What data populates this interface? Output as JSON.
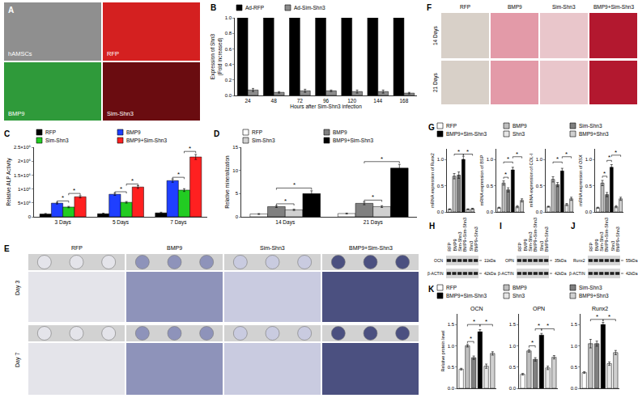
{
  "chart_data": [
    {
      "panel_label": "B",
      "type": "bar",
      "categories": [
        "24",
        "48",
        "72",
        "96",
        "120",
        "144",
        "168"
      ],
      "xlabel": "Hours after Sim-Shn3 infection",
      "ylabel": [
        "Expression of Shn3",
        "(Fold increased)"
      ],
      "series": [
        {
          "name": "Ad-RFP",
          "color": "#000000",
          "values": [
            1,
            1,
            1,
            1,
            1,
            1,
            1
          ]
        },
        {
          "name": "Ad-Sim-Shn3",
          "color": "#8c8c8c",
          "values": [
            0.07,
            0.04,
            0.06,
            0.06,
            0.05,
            0.05,
            0.03
          ],
          "errors": [
            0.02,
            0.01,
            0.02,
            0.01,
            0.02,
            0.02,
            0.01
          ]
        }
      ],
      "ylim": [
        0,
        1
      ],
      "yticks": [
        {
          "value": 0,
          "label": "0.0"
        },
        0.2,
        0.4,
        0.6,
        0.8,
        {
          "value": 1,
          "label": "1.0"
        }
      ],
      "legend": "top"
    },
    {
      "panel_label": "C",
      "type": "bar",
      "categories": [
        "3 Days",
        "5 Days",
        "7 Days"
      ],
      "ylabel": [
        "Relative ALP Activity"
      ],
      "series": [
        {
          "name": "RFP",
          "color": "#000000",
          "values": [
            100000,
            110000,
            140000
          ],
          "errors": [
            20000,
            20000,
            25000
          ]
        },
        {
          "name": "BMP9",
          "color": "#1f3fff",
          "values": [
            490000,
            810000,
            1300000
          ],
          "errors": [
            30000,
            40000,
            60000
          ]
        },
        {
          "name": "Sim-Shn3",
          "color": "#22cc22",
          "values": [
            350000,
            520000,
            960000
          ],
          "errors": [
            25000,
            30000,
            50000
          ]
        },
        {
          "name": "BMP9+Sim-Shn3",
          "color": "#ff2020",
          "values": [
            720000,
            1070000,
            2150000
          ],
          "errors": [
            40000,
            50000,
            90000
          ]
        }
      ],
      "ylim": [
        0,
        2500000
      ],
      "yticks": [
        0,
        {
          "value": 500000,
          "label": "5×10⁵"
        },
        {
          "value": 1000000,
          "label": "1×10⁶"
        },
        {
          "value": 1500000,
          "label": "1.5×10⁶"
        },
        {
          "value": 2000000,
          "label": "2×10⁶"
        },
        {
          "value": 2500000,
          "label": "2.5×10⁶"
        }
      ],
      "significance": [
        {
          "category": "3 Days",
          "from": "BMP9",
          "to": "Sim-Shn3",
          "y": 570000,
          "label": "*"
        },
        {
          "category": "3 Days",
          "from": "Sim-Shn3",
          "to": "BMP9+Sim-Shn3",
          "y": 840000,
          "label": "*"
        },
        {
          "category": "5 Days",
          "from": "BMP9",
          "to": "Sim-Shn3",
          "y": 900000,
          "label": "*"
        },
        {
          "category": "5 Days",
          "from": "Sim-Shn3",
          "to": "BMP9+Sim-Shn3",
          "y": 1180000,
          "label": "*"
        },
        {
          "category": "7 Days",
          "from": "BMP9",
          "to": "Sim-Shn3",
          "y": 1420000,
          "label": "*"
        },
        {
          "category": "7 Days",
          "from": "Sim-Shn3",
          "to": "BMP9+Sim-Shn3",
          "y": 2350000,
          "label": "*"
        }
      ],
      "legend": "top"
    },
    {
      "panel_label": "D",
      "type": "bar",
      "categories": [
        "14 Days",
        "21 Days"
      ],
      "ylabel": [
        "Relative mineralization"
      ],
      "series": [
        {
          "name": "RFP",
          "color": "#ffffff",
          "values": [
            0.6,
            0.7
          ],
          "errors": [
            0.1,
            0.1
          ]
        },
        {
          "name": "BMP9",
          "color": "#808080",
          "values": [
            2.2,
            2.9
          ],
          "errors": [
            0.2,
            0.3
          ]
        },
        {
          "name": "Sim-Shn3",
          "color": "#d0d0d0",
          "values": [
            1.5,
            2.2
          ],
          "errors": [
            0.15,
            0.2
          ]
        },
        {
          "name": "BMP9+Sim-Shn3",
          "color": "#000000",
          "values": [
            5.0,
            10.5
          ],
          "errors": [
            0.6,
            0.8
          ]
        }
      ],
      "ylim": [
        0,
        15
      ],
      "yticks": [
        0,
        5,
        10,
        15
      ],
      "significance": [
        {
          "category": "14 Days",
          "from": "BMP9",
          "to": "Sim-Shn3",
          "y": 2.8,
          "label": "*"
        },
        {
          "category": "14 Days",
          "from": "BMP9",
          "to": "BMP9+Sim-Shn3",
          "y": 6.2,
          "label": "*"
        },
        {
          "category": "21 Days",
          "from": "BMP9",
          "to": "Sim-Shn3",
          "y": 3.6,
          "label": "*"
        },
        {
          "category": "21 Days",
          "from": "BMP9",
          "to": "BMP9+Sim-Shn3",
          "y": 11.9,
          "label": "*"
        }
      ],
      "legend": "top"
    },
    {
      "panel_label": "G",
      "type": "bar",
      "categories": [
        "RFP",
        "BMP9",
        "Sim-Shn3",
        "BMP9+Sim-Shn3",
        "Shn3",
        "BMP9+Shn3"
      ],
      "ylabel": [
        "mRNA expression of Runx2"
      ],
      "values": [
        0.05,
        0.68,
        0.7,
        1.0,
        0.05,
        0.06
      ],
      "errors": [
        0.01,
        0.05,
        0.06,
        0.06,
        0.01,
        0.01
      ],
      "colors": [
        "#ffffff",
        "#bfbfbf",
        "#7f7f7f",
        "#000000",
        "#e6e6e6",
        "#d0d0d0"
      ],
      "ylim": [
        0,
        1.2
      ],
      "yticks": [
        {
          "value": 0,
          "label": "0.0"
        },
        0.5,
        {
          "value": 1,
          "label": "1.0"
        }
      ],
      "tick_labels": "y",
      "significance": [
        {
          "from": "BMP9",
          "to": "BMP9+Sim-Shn3",
          "y": 1.1,
          "label": "*"
        },
        {
          "from": "BMP9+Sim-Shn3",
          "to": "BMP9+Shn3",
          "y": 1.1,
          "label": "*"
        }
      ],
      "legend": "top"
    },
    {
      "type": "bar",
      "categories": [
        "RFP",
        "BMP9",
        "Sim-Shn3",
        "BMP9+Sim-Shn3",
        "Shn3",
        "BMP9+Shn3"
      ],
      "ylabel": [
        "mRNA expression of BSP"
      ],
      "values": [
        0.08,
        0.55,
        0.42,
        0.8,
        0.1,
        0.22
      ],
      "errors": [
        0.01,
        0.04,
        0.04,
        0.05,
        0.02,
        0.03
      ],
      "colors": [
        "#ffffff",
        "#bfbfbf",
        "#7f7f7f",
        "#000000",
        "#e6e6e6",
        "#d0d0d0"
      ],
      "ylim": [
        0,
        1.2
      ],
      "yticks": [
        {
          "value": 0,
          "label": "0.0"
        },
        0.5,
        {
          "value": 1,
          "label": "1.0"
        }
      ],
      "tick_labels": "y",
      "significance": [
        {
          "from": "BMP9",
          "to": "Sim-Shn3",
          "y": 0.66,
          "label": "*"
        },
        {
          "from": "BMP9",
          "to": "BMP9+Sim-Shn3",
          "y": 0.95,
          "label": "*"
        },
        {
          "from": "BMP9+Sim-Shn3",
          "to": "BMP9+Shn3",
          "y": 1.05,
          "label": "*"
        }
      ]
    },
    {
      "type": "bar",
      "categories": [
        "RFP",
        "BMP9",
        "Sim-Shn3",
        "BMP9+Sim-Shn3",
        "Shn3",
        "BMP9+Shn3"
      ],
      "ylabel": [
        "mRNA expression of COL-I"
      ],
      "values": [
        0.1,
        0.62,
        0.52,
        0.78,
        0.14,
        0.25
      ],
      "errors": [
        0.01,
        0.05,
        0.04,
        0.05,
        0.02,
        0.03
      ],
      "colors": [
        "#ffffff",
        "#bfbfbf",
        "#7f7f7f",
        "#000000",
        "#e6e6e6",
        "#d0d0d0"
      ],
      "ylim": [
        0,
        1.2
      ],
      "yticks": [
        {
          "value": 0,
          "label": "0.0"
        },
        0.5,
        {
          "value": 1,
          "label": "1.0"
        }
      ],
      "tick_labels": "y",
      "significance": [
        {
          "from": "BMP9",
          "to": "BMP9+Sim-Shn3",
          "y": 0.95,
          "label": "*"
        },
        {
          "from": "BMP9+Sim-Shn3",
          "to": "BMP9+Shn3",
          "y": 1.05,
          "label": "*"
        }
      ]
    },
    {
      "type": "bar",
      "categories": [
        "RFP",
        "BMP9",
        "Sim-Shn3",
        "BMP9+Sim-Shn3",
        "Shn3",
        "BMP9+Shn3"
      ],
      "ylabel": [
        "mRNA expression of OSX"
      ],
      "values": [
        0.08,
        0.55,
        0.33,
        0.85,
        0.1,
        0.25
      ],
      "errors": [
        0.01,
        0.05,
        0.04,
        0.05,
        0.02,
        0.03
      ],
      "colors": [
        "#ffffff",
        "#bfbfbf",
        "#7f7f7f",
        "#000000",
        "#e6e6e6",
        "#d0d0d0"
      ],
      "ylim": [
        0,
        1.2
      ],
      "yticks": [
        {
          "value": 0,
          "label": "0.0"
        },
        0.5,
        {
          "value": 1,
          "label": "1.0"
        }
      ],
      "tick_labels": "y",
      "significance": [
        {
          "from": "BMP9",
          "to": "Sim-Shn3",
          "y": 0.68,
          "label": "*"
        },
        {
          "from": "Sim-Shn3",
          "to": "BMP9+Sim-Shn3",
          "y": 0.98,
          "label": "*"
        },
        {
          "from": "BMP9+Sim-Shn3",
          "to": "BMP9+Shn3",
          "y": 1.08,
          "label": "*"
        }
      ]
    },
    {
      "panel_label": "K",
      "type": "bar",
      "title": "OCN",
      "categories": [
        "RFP",
        "BMP9",
        "Sim-Shn3",
        "BMP9+Sim-Shn3",
        "Shn3",
        "BMP9+Shn3"
      ],
      "ylabel": [
        "Relative protein level"
      ],
      "values": [
        0.45,
        1.0,
        0.72,
        1.33,
        0.52,
        0.82
      ],
      "errors": [
        0.02,
        0.03,
        0.04,
        0.05,
        0.05,
        0.04
      ],
      "colors": [
        "#ffffff",
        "#bfbfbf",
        "#7f7f7f",
        "#000000",
        "#e6e6e6",
        "#d0d0d0"
      ],
      "ylim": [
        0,
        1.75
      ],
      "yticks": [
        {
          "value": 0,
          "label": "0.0"
        },
        0.5,
        {
          "value": 1,
          "label": "1.0"
        },
        1.5
      ],
      "tick_labels": "y",
      "significance": [
        {
          "from": "BMP9",
          "to": "Sim-Shn3",
          "y": 1.1,
          "label": "*"
        },
        {
          "from": "BMP9",
          "to": "BMP9+Sim-Shn3",
          "y": 1.5,
          "label": "*"
        },
        {
          "from": "BMP9+Sim-Shn3",
          "to": "BMP9+Shn3",
          "y": 1.5,
          "label": "*"
        }
      ],
      "legend": "top"
    },
    {
      "type": "bar",
      "title": "OPN",
      "categories": [
        "RFP",
        "BMP9",
        "Sim-Shn3",
        "BMP9+Sim-Shn3",
        "Shn3",
        "BMP9+Shn3"
      ],
      "values": [
        0.33,
        0.88,
        0.68,
        1.25,
        0.48,
        0.73
      ],
      "errors": [
        0.02,
        0.03,
        0.04,
        0.04,
        0.04,
        0.04
      ],
      "colors": [
        "#ffffff",
        "#bfbfbf",
        "#7f7f7f",
        "#000000",
        "#e6e6e6",
        "#d0d0d0"
      ],
      "ylim": [
        0,
        1.75
      ],
      "yticks": [
        {
          "value": 0,
          "label": "0.0"
        },
        0.5,
        {
          "value": 1,
          "label": "1.0"
        },
        1.5
      ],
      "tick_labels": "y",
      "significance": [
        {
          "from": "BMP9",
          "to": "Sim-Shn3",
          "y": 1.0,
          "label": "*"
        },
        {
          "from": "Sim-Shn3",
          "to": "BMP9+Sim-Shn3",
          "y": 1.4,
          "label": "*"
        },
        {
          "from": "BMP9+Sim-Shn3",
          "to": "BMP9+Shn3",
          "y": 1.4,
          "label": "*"
        }
      ]
    },
    {
      "type": "bar",
      "title": "Runx2",
      "categories": [
        "RFP",
        "BMP9",
        "Sim-Shn3",
        "BMP9+Sim-Shn3",
        "Shn3",
        "BMP9+Shn3"
      ],
      "values": [
        0.37,
        1.05,
        1.05,
        1.5,
        0.58,
        0.84
      ],
      "errors": [
        0.02,
        0.1,
        0.06,
        0.05,
        0.04,
        0.05
      ],
      "colors": [
        "#ffffff",
        "#bfbfbf",
        "#7f7f7f",
        "#000000",
        "#e6e6e6",
        "#d0d0d0"
      ],
      "ylim": [
        0,
        1.75
      ],
      "yticks": [
        {
          "value": 0,
          "label": "0.0"
        },
        0.5,
        {
          "value": 1,
          "label": "1.0"
        },
        1.5
      ],
      "tick_labels": "y",
      "significance": [
        {
          "from": "BMP9",
          "to": "BMP9+Sim-Shn3",
          "y": 1.62,
          "label": "*"
        },
        {
          "from": "BMP9+Sim-Shn3",
          "to": "BMP9+Shn3",
          "y": 1.62,
          "label": "*"
        }
      ]
    }
  ],
  "image_panels": [
    {
      "panel_label": "A",
      "cells": [
        {
          "label": "hAMSCs",
          "color": "#8f8f8f"
        },
        {
          "label": "RFP",
          "color": "#d42020"
        },
        {
          "label": "BMP9",
          "color": "#2f9a3a"
        },
        {
          "label": "Sim-Shn3",
          "color": "#6a0c10"
        }
      ]
    },
    {
      "panel_label": "F",
      "columns": [
        "RFP",
        "BMP9",
        "Sim-Shn3",
        "BMP9+Sim-Shn3"
      ],
      "rows": [
        "14 Days",
        "21 Days"
      ],
      "colors": [
        "#d8d0c8",
        "#e39aa8",
        "#e9c6cb",
        "#b3182f"
      ]
    },
    {
      "panel_label": "E",
      "columns": [
        "RFP",
        "BMP9",
        "Sim-Shn3",
        "BMP9+Sim-Shn3"
      ],
      "rows": [
        "Day 3",
        "Day 7"
      ],
      "colors": [
        "#e4e4ea",
        "#8e93ba",
        "#c9cbe0",
        "#4b5080"
      ]
    }
  ],
  "blots": [
    {
      "panel_label": "H",
      "lanes": [
        "RFP",
        "BMP9",
        "Sim-Shn3",
        "BMP9+Sim-Shn3",
        "Shn3",
        "BMP9+Shn3"
      ],
      "bands": [
        {
          "label": "OCN",
          "size": "11kDa"
        },
        {
          "label": "β-ACTIN",
          "size": "42kDa"
        }
      ]
    },
    {
      "panel_label": "I",
      "lanes": [
        "RFP",
        "BMP9",
        "Sim-Shn3",
        "BMP9+Sim-Shn3",
        "Shn3",
        "BMP9+Shn3"
      ],
      "bands": [
        {
          "label": "OPN",
          "size": "35kDa"
        },
        {
          "label": "β-ACTIN",
          "size": "42kDa"
        }
      ]
    },
    {
      "panel_label": "J",
      "lanes": [
        "RFP",
        "BMP9",
        "Sim-Shn3",
        "BMP9+Sim-Shn3",
        "Shn3",
        "BMP9+Shn3"
      ],
      "bands": [
        {
          "label": "Runx2",
          "size": "55kDa"
        },
        {
          "label": "β-ACTIN",
          "size": "42kDa"
        }
      ]
    }
  ]
}
